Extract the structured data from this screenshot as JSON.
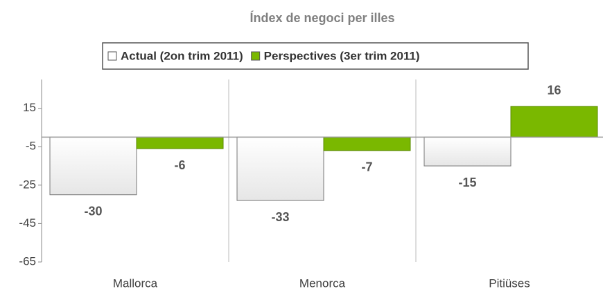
{
  "chart_data": {
    "type": "bar",
    "title": "Índex de negoci per illes",
    "categories": [
      "Mallorca",
      "Menorca",
      "Pitiüses"
    ],
    "series": [
      {
        "name": "Actual (2on trim 2011)",
        "color": "#e6e6e6",
        "values": [
          -30,
          -33,
          -15
        ]
      },
      {
        "name": "Perspectives (3er trim 2011)",
        "color": "#7ab800",
        "values": [
          -6,
          -7,
          16
        ]
      }
    ],
    "ylim": [
      -65,
      30
    ],
    "yticks": [
      15,
      -5,
      -25,
      -45,
      -65
    ],
    "legend": "top"
  }
}
